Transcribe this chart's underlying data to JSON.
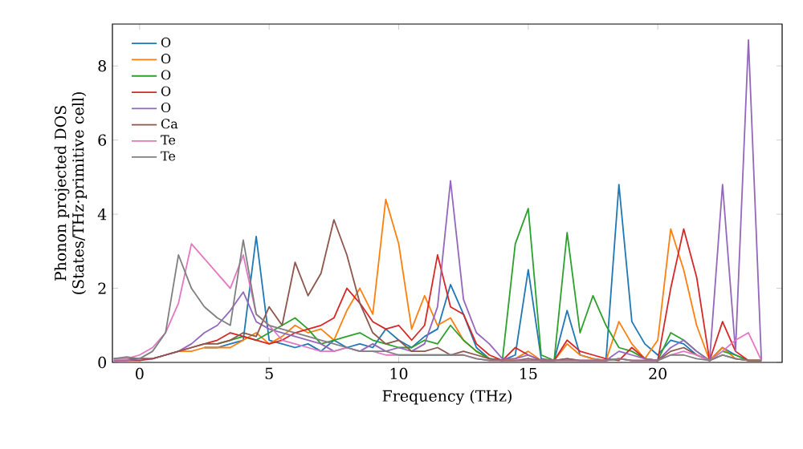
{
  "chart_data": {
    "type": "line",
    "xlabel": "Frequency (THz)",
    "ylabel": "Phonon projected DOS (States/THz·primitive cell)",
    "x": [
      -1,
      -0.5,
      0,
      0.5,
      1,
      1.5,
      2,
      2.5,
      3,
      3.5,
      4,
      4.5,
      5,
      5.5,
      6,
      6.5,
      7,
      7.5,
      8,
      8.5,
      9,
      9.5,
      10,
      10.5,
      11,
      11.5,
      12,
      12.5,
      13,
      13.5,
      14,
      14.5,
      15,
      15.5,
      16,
      16.5,
      17,
      17.5,
      18,
      18.5,
      19,
      19.5,
      20,
      20.5,
      21,
      21.5,
      22,
      22.5,
      23,
      23.5,
      24
    ],
    "xlim": [
      -1.05,
      24.8
    ],
    "ylim": [
      0,
      9.13
    ],
    "xticks": [
      0,
      5,
      10,
      15,
      20
    ],
    "yticks": [
      0,
      2,
      4,
      6,
      8
    ],
    "grid": false,
    "legend": "top left",
    "marker": "none",
    "line_style": "solid",
    "series": [
      {
        "name": "O",
        "color": "#1f77b4",
        "values": [
          null,
          null,
          null,
          null,
          null,
          null,
          null,
          0.4,
          0.4,
          0.5,
          0.6,
          3.4,
          0.6,
          0.5,
          0.4,
          0.5,
          0.3,
          0.6,
          0.4,
          0.5,
          0.4,
          0.9,
          0.6,
          0.4,
          0.7,
          0.9,
          2.1,
          1.3,
          0.4,
          0.1,
          0.05,
          0.2,
          2.5,
          0.1,
          0.05,
          1.4,
          0.2,
          0.1,
          0.05,
          4.8,
          1.1,
          0.5,
          0.2,
          0.6,
          0.5,
          0.2,
          0.05,
          0.4,
          0.2,
          0.05,
          0.05
        ]
      },
      {
        "name": "O",
        "color": "#ff7f0e",
        "values": [
          null,
          null,
          null,
          null,
          0.2,
          0.3,
          0.3,
          0.4,
          0.4,
          0.4,
          0.6,
          0.8,
          0.5,
          0.7,
          1.0,
          0.8,
          0.9,
          0.6,
          1.4,
          2.0,
          1.3,
          4.4,
          3.2,
          0.9,
          1.8,
          1.0,
          1.2,
          0.6,
          0.3,
          0.1,
          0.05,
          0.1,
          0.3,
          0.05,
          0.05,
          0.5,
          0.2,
          0.1,
          0.05,
          1.1,
          0.5,
          0.1,
          0.6,
          3.6,
          2.5,
          1.0,
          0.05,
          0.4,
          0.1,
          0.05,
          0.05
        ]
      },
      {
        "name": "O",
        "color": "#2ca02c",
        "values": [
          null,
          null,
          null,
          null,
          null,
          null,
          null,
          null,
          0.5,
          0.6,
          0.7,
          0.6,
          0.8,
          1.0,
          1.2,
          0.9,
          0.5,
          0.6,
          0.7,
          0.8,
          0.6,
          0.5,
          0.4,
          0.4,
          0.6,
          0.5,
          1.0,
          0.6,
          0.3,
          0.1,
          0.05,
          3.2,
          4.15,
          0.2,
          0.05,
          3.5,
          0.8,
          1.8,
          1.0,
          0.4,
          0.3,
          0.1,
          0.05,
          0.8,
          0.6,
          0.3,
          0.05,
          0.3,
          0.2,
          0.05,
          0.05
        ]
      },
      {
        "name": "O",
        "color": "#d62728",
        "values": [
          0.05,
          0.05,
          0.05,
          0.1,
          0.2,
          0.3,
          0.4,
          0.5,
          0.6,
          0.8,
          0.7,
          0.6,
          0.5,
          0.6,
          0.8,
          0.9,
          1.0,
          1.2,
          2.0,
          1.6,
          1.1,
          0.9,
          1.0,
          0.6,
          1.0,
          2.9,
          1.5,
          1.3,
          0.5,
          0.2,
          0.05,
          0.4,
          0.2,
          0.05,
          0.05,
          0.6,
          0.3,
          0.2,
          0.1,
          0.05,
          0.4,
          0.1,
          0.05,
          2.0,
          3.6,
          2.3,
          0.05,
          1.1,
          0.3,
          0.05,
          0.05
        ]
      },
      {
        "name": "O",
        "color": "#9467bd",
        "values": [
          0.05,
          0.05,
          0.1,
          0.1,
          0.2,
          0.3,
          0.5,
          0.8,
          1.0,
          1.4,
          1.9,
          1.1,
          0.9,
          0.8,
          0.7,
          0.6,
          0.5,
          0.3,
          0.4,
          0.3,
          0.5,
          0.3,
          0.4,
          0.3,
          0.5,
          1.5,
          4.9,
          1.7,
          0.8,
          0.5,
          0.1,
          0.1,
          0.2,
          0.05,
          0.05,
          0.1,
          0.05,
          0.05,
          0.05,
          0.3,
          0.2,
          0.1,
          0.05,
          0.4,
          0.6,
          0.3,
          0.05,
          4.8,
          0.3,
          8.7,
          0.05
        ]
      },
      {
        "name": "Ca",
        "color": "#8c564b",
        "values": [
          0.1,
          0.1,
          0.1,
          0.1,
          0.2,
          0.3,
          0.4,
          0.5,
          0.5,
          0.6,
          0.8,
          0.7,
          1.5,
          1.0,
          2.7,
          1.8,
          2.4,
          3.85,
          2.9,
          1.6,
          0.8,
          0.5,
          0.6,
          0.3,
          0.3,
          0.4,
          0.2,
          0.3,
          0.2,
          0.1,
          0.05,
          0.05,
          0.1,
          0.05,
          0.05,
          0.1,
          0.05,
          0.05,
          0.05,
          0.1,
          0.05,
          0.05,
          0.05,
          0.3,
          0.4,
          0.2,
          0.05,
          0.2,
          0.1,
          0.05,
          0.05
        ]
      },
      {
        "name": "Te",
        "color": "#e377c2",
        "values": [
          0.1,
          0.1,
          0.2,
          0.4,
          0.8,
          1.6,
          3.2,
          2.8,
          2.4,
          2.0,
          2.9,
          1.3,
          1.0,
          0.6,
          0.5,
          0.4,
          0.3,
          0.3,
          0.4,
          0.3,
          0.3,
          0.2,
          0.2,
          0.2,
          0.2,
          0.2,
          0.2,
          0.2,
          0.1,
          0.05,
          0.05,
          0.05,
          0.05,
          0.05,
          0.05,
          0.05,
          0.05,
          0.05,
          0.05,
          0.1,
          0.05,
          0.05,
          0.05,
          0.2,
          0.3,
          0.2,
          0.05,
          0.3,
          0.6,
          0.8,
          0.05
        ]
      },
      {
        "name": "Te",
        "color": "#7f7f7f",
        "values": [
          0.1,
          0.15,
          0.1,
          0.3,
          0.8,
          2.9,
          2.0,
          1.5,
          1.2,
          1.0,
          3.3,
          1.3,
          1.0,
          0.9,
          0.8,
          0.7,
          0.6,
          0.5,
          0.4,
          0.3,
          0.3,
          0.3,
          0.2,
          0.2,
          0.2,
          0.2,
          0.2,
          0.2,
          0.1,
          0.05,
          0.05,
          0.05,
          0.05,
          0.05,
          0.05,
          0.05,
          0.05,
          0.05,
          0.05,
          0.1,
          0.05,
          0.05,
          0.05,
          0.2,
          0.2,
          0.1,
          0.05,
          0.2,
          0.1,
          0.05,
          0.05
        ]
      }
    ]
  }
}
